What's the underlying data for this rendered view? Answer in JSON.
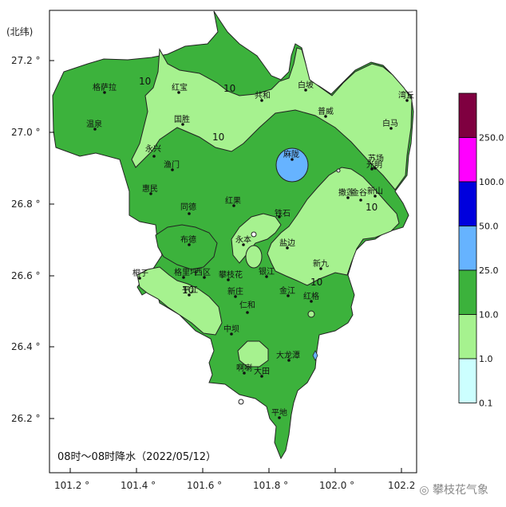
{
  "map": {
    "latitude_unit_label": "(北纬)",
    "x_ticks": [
      "101.2 °",
      "101.4 °",
      "101.6 °",
      "101.8 °",
      "102.0 °",
      "102.2"
    ],
    "y_ticks": [
      "27.2 °",
      "27.0 °",
      "26.8 °",
      "26.6 °",
      "26.4 °",
      "26.2 °"
    ],
    "caption": "08时～08时降水（2022/05/12）",
    "contour_label": "10",
    "cities": [
      "格萨拉",
      "红宝",
      "共和",
      "白坡",
      "湾丘",
      "普威",
      "温泉",
      "国胜",
      "白马",
      "永兴",
      "麻陇",
      "苏场",
      "渔门",
      "光明",
      "新山",
      "惠民",
      "撒莲",
      "金谷",
      "红果",
      "铁石",
      "同德",
      "布德",
      "永本",
      "盐边",
      "新九",
      "桐子",
      "格里坪",
      "西区",
      "攀枝花",
      "银江",
      "金江",
      "平江",
      "红格",
      "新庄",
      "仁和",
      "中坝",
      "大龙潭",
      "啊喇",
      "大田",
      "平地"
    ]
  },
  "legend": {
    "labels": [
      "250.0",
      "100.0",
      "50.0",
      "25.0",
      "10.0",
      "1.0",
      "0.1"
    ],
    "colors": [
      "#7f0040",
      "#ff00ff",
      "#0000dd",
      "#66b3ff",
      "#3cb23c",
      "#a6f28f",
      "#ccffff"
    ]
  },
  "watermark": "攀枝花气象"
}
